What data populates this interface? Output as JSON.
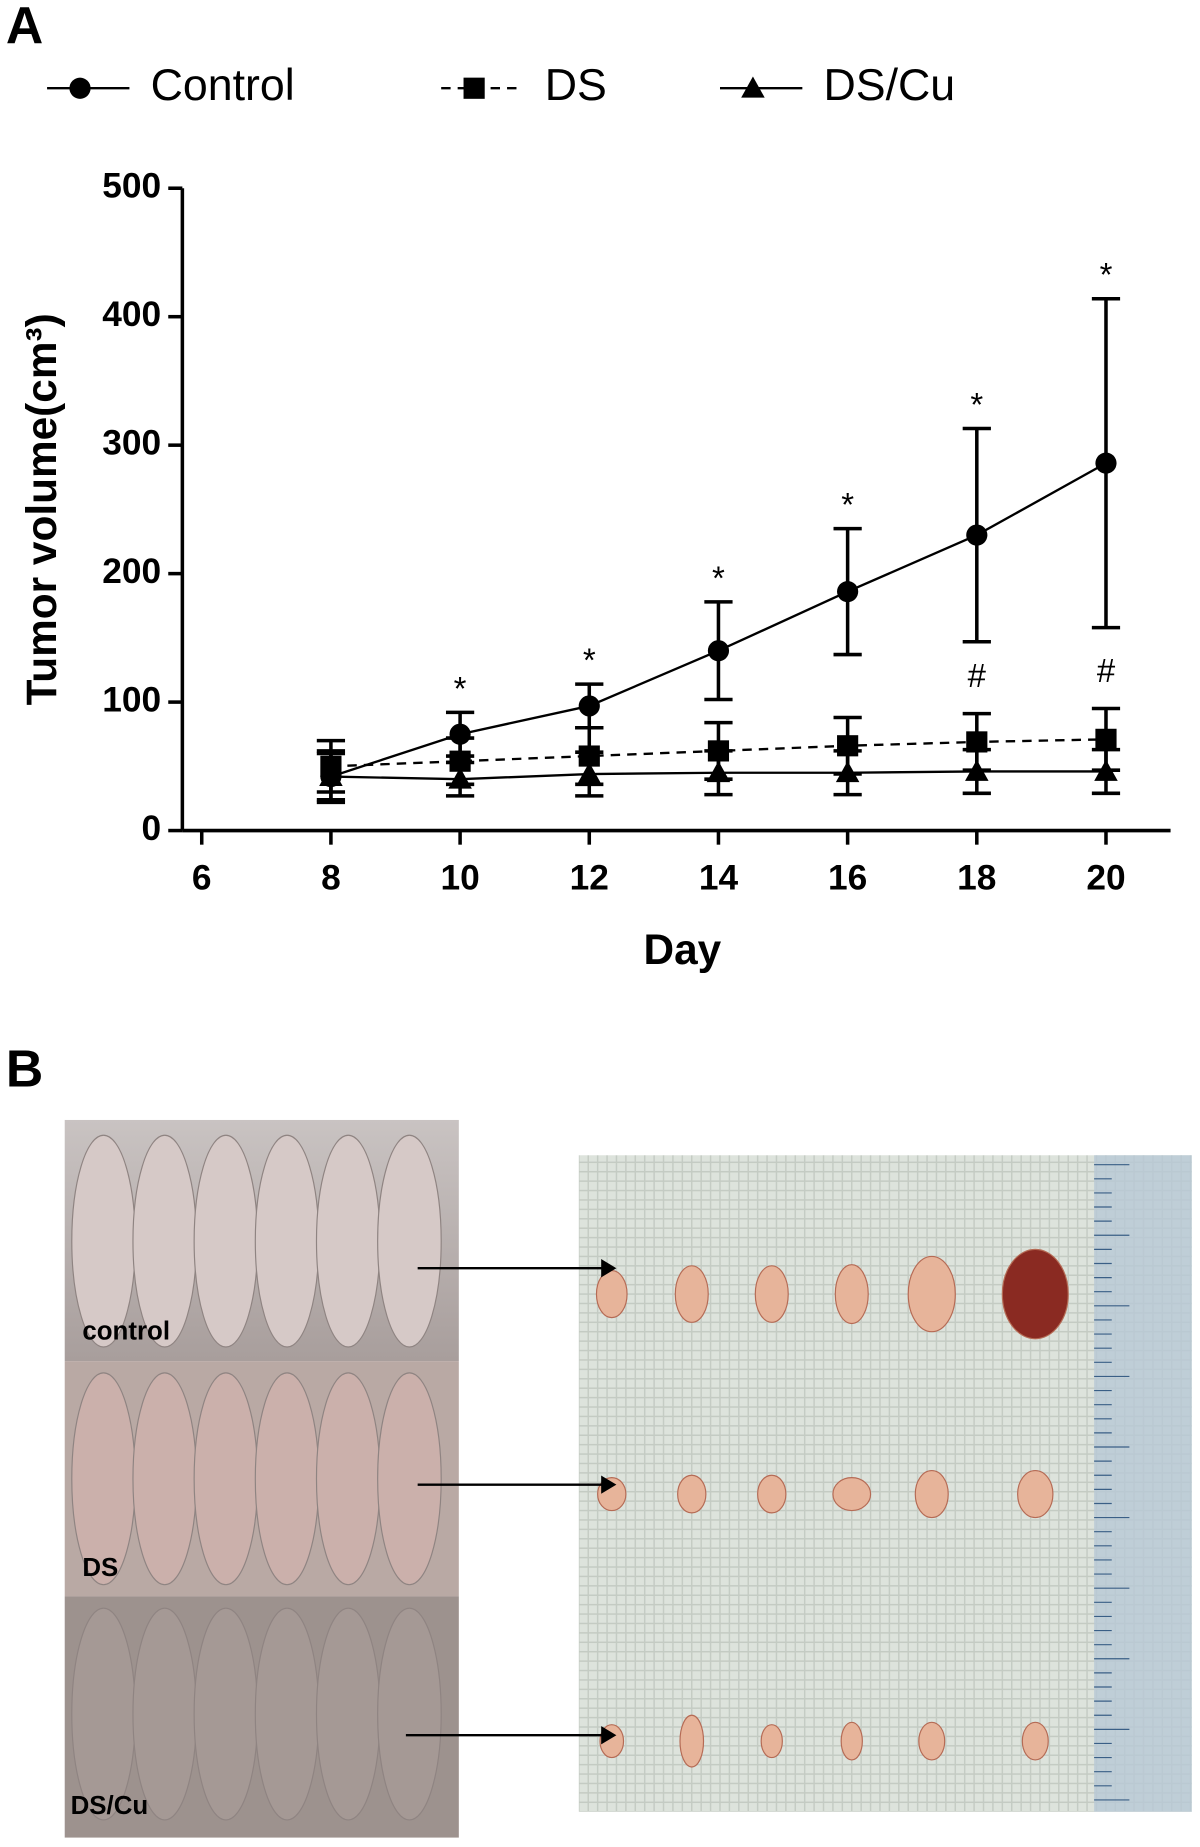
{
  "chart_data": {
    "type": "line",
    "panel_label": "A",
    "x_label": "Day",
    "y_label": "Tumor volume(cm³)",
    "x": [
      8,
      10,
      12,
      14,
      16,
      18,
      20
    ],
    "series": [
      {
        "name": "Control",
        "color": "#000000",
        "marker": "circle",
        "dashed": false,
        "values": [
          42,
          75,
          97,
          140,
          186,
          230,
          286
        ],
        "errors": [
          20,
          17,
          17,
          38,
          49,
          83,
          128
        ]
      },
      {
        "name": "DS",
        "color": "#000000",
        "marker": "square",
        "dashed": true,
        "values": [
          50,
          54,
          58,
          62,
          66,
          69,
          71
        ],
        "errors": [
          20,
          18,
          22,
          22,
          22,
          22,
          24
        ]
      },
      {
        "name": "DS/Cu",
        "color": "#000000",
        "marker": "triangle",
        "dashed": false,
        "values": [
          42,
          40,
          44,
          45,
          45,
          46,
          46
        ],
        "errors": [
          18,
          13,
          17,
          17,
          17,
          17,
          17
        ]
      }
    ],
    "annotations": [
      {
        "text": "*",
        "x": 10,
        "series": 0
      },
      {
        "text": "*",
        "x": 12,
        "series": 0
      },
      {
        "text": "*",
        "x": 14,
        "series": 0
      },
      {
        "text": "*",
        "x": 16,
        "series": 0
      },
      {
        "text": "*",
        "x": 18,
        "series": 0
      },
      {
        "text": "*",
        "x": 20,
        "series": 0
      },
      {
        "text": "#",
        "x": 18,
        "series": 1
      },
      {
        "text": "#",
        "x": 20,
        "series": 1
      }
    ],
    "xlim": [
      5.7,
      21
    ],
    "xticks": [
      6,
      8,
      10,
      12,
      14,
      16,
      18,
      20
    ],
    "ylim": [
      0,
      500
    ],
    "yticks": [
      0,
      100,
      200,
      300,
      400,
      500
    ]
  },
  "photos": {
    "panel_label": "B",
    "labels": [
      "control",
      "DS",
      "DS/Cu"
    ]
  }
}
